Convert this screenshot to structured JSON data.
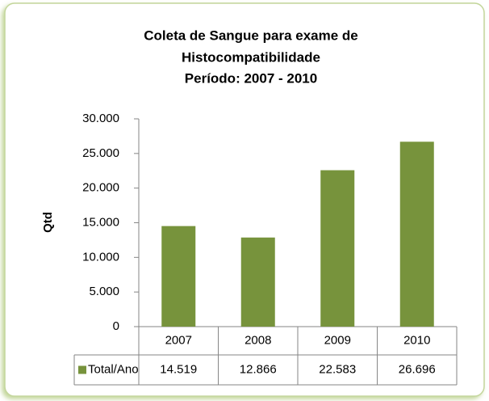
{
  "chart_data": {
    "type": "bar",
    "title": [
      "Coleta de Sangue para exame de",
      "Histocompatibilidade",
      "Período: 2007 - 2010"
    ],
    "y_label": "Qtd",
    "categories": [
      "2007",
      "2008",
      "2009",
      "2010"
    ],
    "series": [
      {
        "name": "Total/Ano",
        "color": "#77933c",
        "values": [
          14519,
          12866,
          22583,
          26696
        ],
        "value_labels": [
          "14.519",
          "12.866",
          "22.583",
          "26.696"
        ]
      }
    ],
    "ylim": [
      0,
      30000
    ],
    "yticks": [
      0,
      {
        "value": 5000,
        "label": "5.000"
      },
      {
        "value": 10000,
        "label": "10.000"
      },
      {
        "value": 15000,
        "label": "15.000"
      },
      {
        "value": 20000,
        "label": "20.000"
      },
      {
        "value": 25000,
        "label": "25.000"
      },
      {
        "value": 30000,
        "label": "30.000"
      }
    ],
    "grid": false,
    "legend": "table"
  }
}
